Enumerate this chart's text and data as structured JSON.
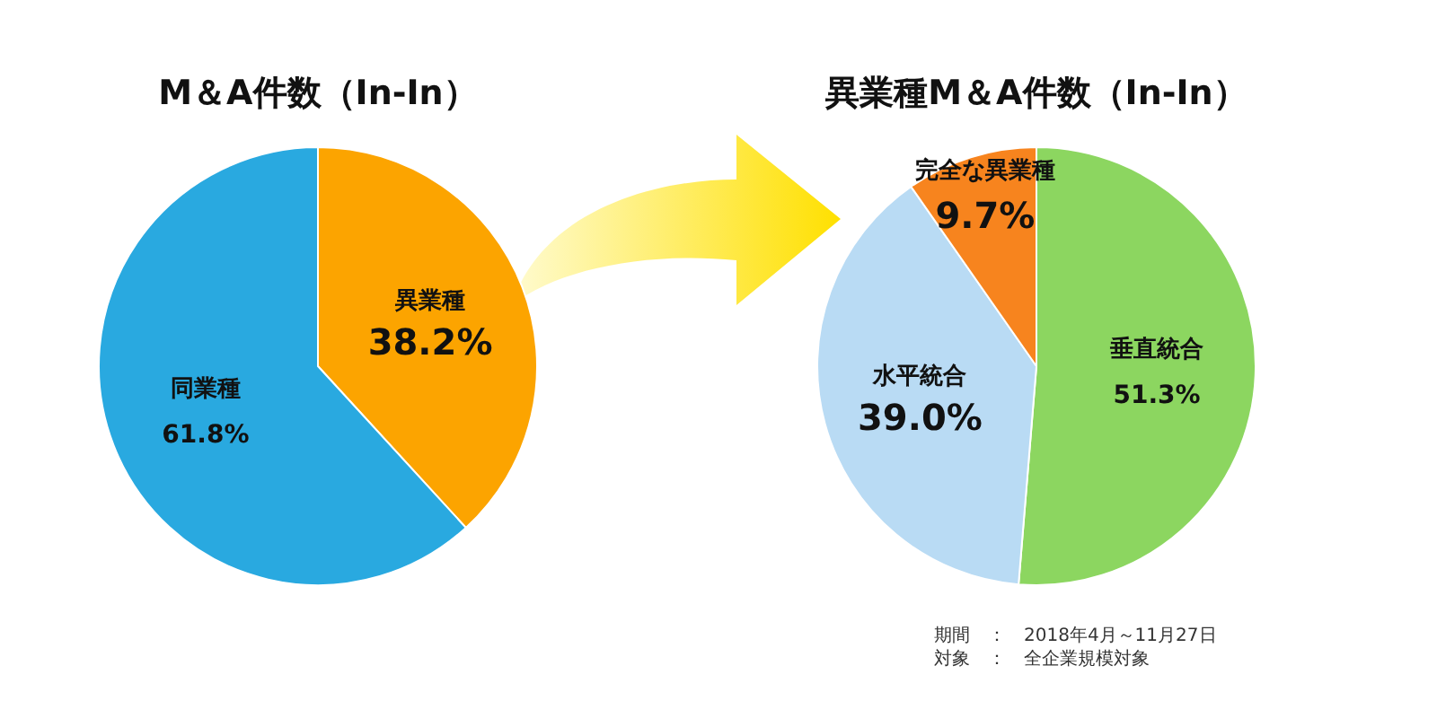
{
  "chart_data": [
    {
      "type": "pie",
      "title": "M＆A件数（In-In）",
      "categories": [
        "異業種",
        "同業種"
      ],
      "values": [
        38.2,
        61.8
      ],
      "colors": [
        "#fca400",
        "#29a9e0"
      ],
      "value_labels": [
        "38.2%",
        "61.8%"
      ]
    },
    {
      "type": "pie",
      "title": "異業種M＆A件数（In-In）",
      "categories": [
        "垂直統合",
        "水平統合",
        "完全な異業種"
      ],
      "values": [
        51.3,
        39.0,
        9.7
      ],
      "colors": [
        "#8cd660",
        "#b9dbf4",
        "#f7841e"
      ],
      "value_labels": [
        "51.3%",
        "39.0%",
        "9.7%"
      ],
      "annotations": [
        "期間　：　2018年4月～11月27日",
        "対象　：　全企業規模対象"
      ]
    }
  ]
}
